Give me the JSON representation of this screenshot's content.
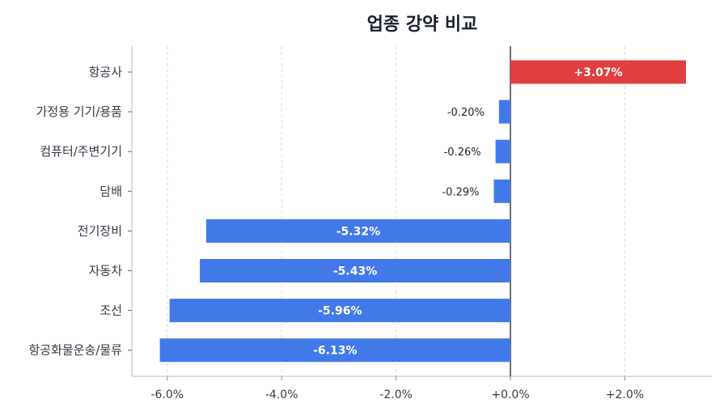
{
  "chart_data": {
    "type": "bar",
    "orientation": "horizontal",
    "title": "업종 강약 비교",
    "xlabel": "",
    "ylabel": "",
    "categories": [
      "항공사",
      "가정용 기기/용품",
      "컴퓨터/주변기기",
      "담배",
      "전기장비",
      "자동차",
      "조선",
      "항공화물운송/물류"
    ],
    "values": [
      3.07,
      -0.2,
      -0.26,
      -0.29,
      -5.32,
      -5.43,
      -5.96,
      -6.13
    ],
    "value_labels": [
      "+3.07%",
      "-0.20%",
      "-0.26%",
      "-0.29%",
      "-5.32%",
      "-5.43%",
      "-5.96%",
      "-6.13%"
    ],
    "xlim": [
      -6.6,
      3.5
    ],
    "xticks": [
      -6,
      -4,
      -2,
      0,
      2
    ],
    "xtick_labels": [
      "-6.0%",
      "-4.0%",
      "-2.0%",
      "+0.0%",
      "+2.0%"
    ],
    "grid": "vertical dashed",
    "colors": {
      "positive": "#e04040",
      "negative": "#4179e8",
      "zero_line": "#3a3f4b",
      "grid": "#dddddd",
      "axis": "#bbbbbb"
    }
  }
}
